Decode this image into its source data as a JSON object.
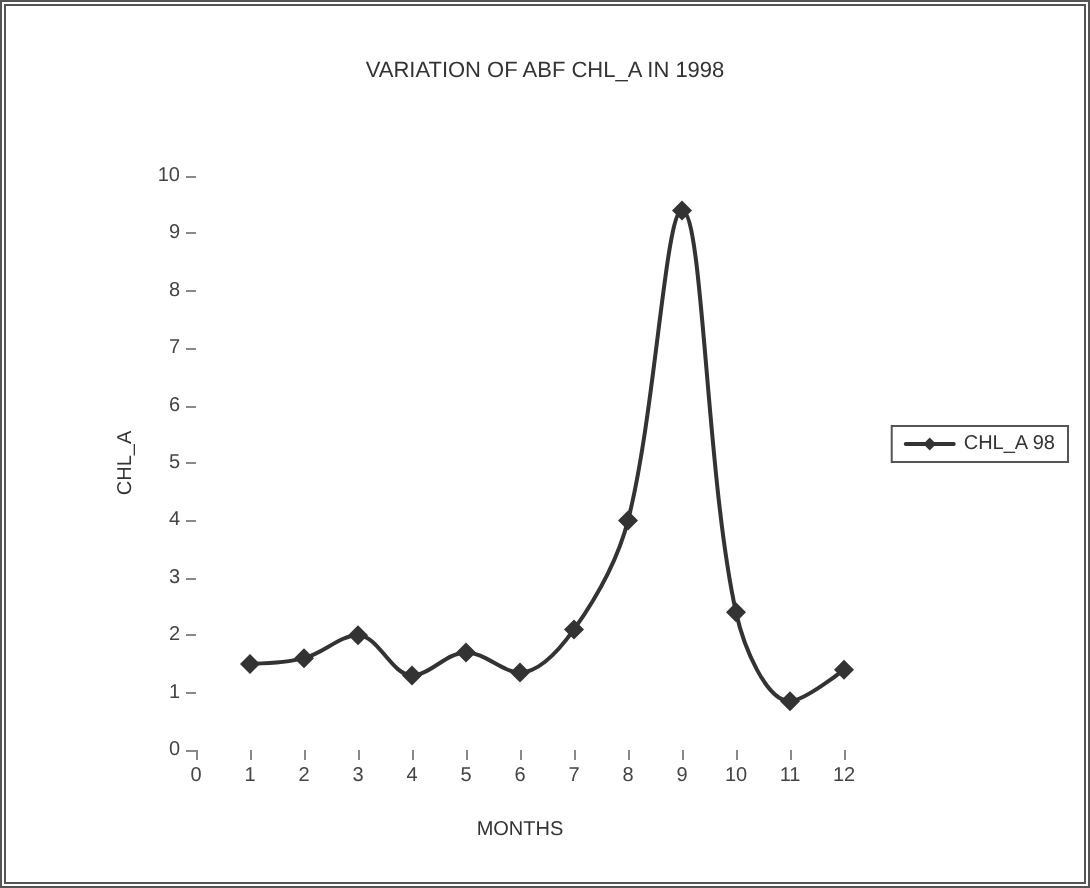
{
  "chart_data": {
    "type": "line",
    "title": "VARIATION OF ABF CHL_A IN 1998",
    "xlabel": "MONTHS",
    "ylabel": "CHL_A",
    "x": [
      1,
      2,
      3,
      4,
      5,
      6,
      7,
      8,
      9,
      10,
      11,
      12
    ],
    "series": [
      {
        "name": "CHL_A 98",
        "color": "#333333",
        "values": [
          1.5,
          1.6,
          2.0,
          1.3,
          1.7,
          1.35,
          2.1,
          4.0,
          9.4,
          2.4,
          0.85,
          1.4
        ]
      }
    ],
    "xlim": [
      0,
      12
    ],
    "xticks": [
      0,
      1,
      2,
      3,
      4,
      5,
      6,
      7,
      8,
      9,
      10,
      11,
      12
    ],
    "ylim": [
      0,
      10
    ],
    "yticks": [
      0,
      1,
      2,
      3,
      4,
      5,
      6,
      7,
      8,
      9,
      10
    ],
    "grid": false,
    "legend": "right",
    "marker": "diamond",
    "line_style": "solid"
  }
}
